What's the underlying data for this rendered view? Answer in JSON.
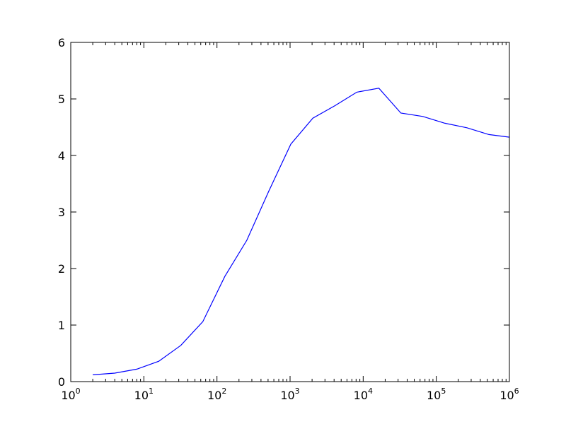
{
  "chart_data": {
    "type": "line",
    "title": "",
    "xlabel": "",
    "ylabel": "",
    "x_scale": "log",
    "xlim": [
      1,
      1000000
    ],
    "ylim": [
      0,
      6
    ],
    "grid": false,
    "x_tick_labels": [
      {
        "base": "10",
        "exp": "0"
      },
      {
        "base": "10",
        "exp": "1"
      },
      {
        "base": "10",
        "exp": "2"
      },
      {
        "base": "10",
        "exp": "3"
      },
      {
        "base": "10",
        "exp": "4"
      },
      {
        "base": "10",
        "exp": "5"
      },
      {
        "base": "10",
        "exp": "6"
      }
    ],
    "y_tick_labels": [
      "0",
      "1",
      "2",
      "3",
      "4",
      "5",
      "6"
    ],
    "series": [
      {
        "color": "#0000ff",
        "x": [
          2,
          4,
          8,
          16,
          32,
          64,
          128,
          256,
          512,
          1024,
          2048,
          4096,
          8192,
          16384,
          32768,
          65536,
          131072,
          262144,
          524288,
          1048576
        ],
        "y": [
          0.12,
          0.15,
          0.22,
          0.36,
          0.64,
          1.06,
          1.86,
          2.5,
          3.37,
          4.2,
          4.66,
          4.88,
          5.12,
          5.19,
          4.75,
          4.69,
          4.57,
          4.49,
          4.37,
          4.32
        ]
      }
    ]
  }
}
